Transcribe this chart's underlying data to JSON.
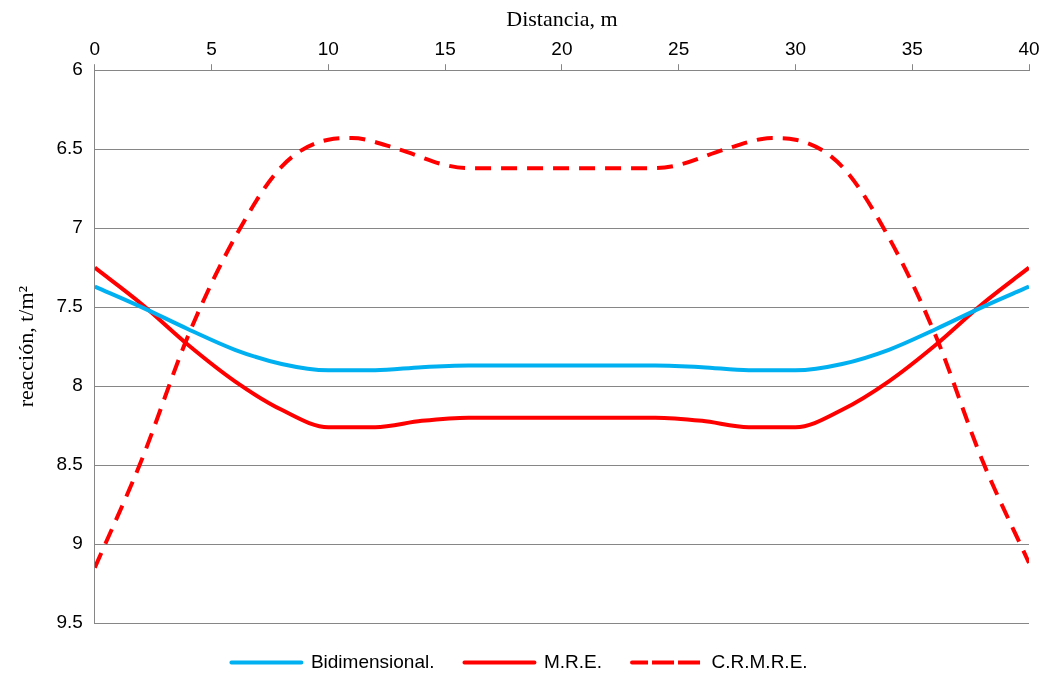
{
  "chart_data": {
    "type": "line",
    "xlabel": "Distancia, m",
    "ylabel": "reacción, t/m²",
    "xlim": [
      0,
      40
    ],
    "xticks": [
      0,
      5,
      10,
      15,
      20,
      25,
      30,
      35,
      40
    ],
    "ylim": [
      9.5,
      6
    ],
    "yticks": [
      6,
      6.5,
      7,
      7.5,
      8,
      8.5,
      9,
      9.5
    ],
    "grid": "y",
    "legend": "bottom",
    "marker": "none",
    "series": [
      {
        "name": "Bidimensional.",
        "color": "#00b0f0",
        "line_style": "solid",
        "x": [
          0,
          2,
          4,
          6,
          8,
          10,
          12,
          14,
          16,
          20,
          24,
          26,
          28,
          30,
          32,
          34,
          36,
          38,
          40
        ],
        "values": [
          7.37,
          7.5,
          7.64,
          7.77,
          7.86,
          7.9,
          7.9,
          7.88,
          7.87,
          7.87,
          7.87,
          7.88,
          7.9,
          7.9,
          7.86,
          7.77,
          7.64,
          7.5,
          7.37
        ]
      },
      {
        "name": "M.R.E.",
        "color": "#ff0000",
        "line_style": "solid",
        "x": [
          0,
          2,
          4,
          6,
          8,
          10,
          12,
          14,
          16,
          20,
          24,
          26,
          28,
          30,
          32,
          34,
          36,
          38,
          40
        ],
        "values": [
          7.25,
          7.48,
          7.74,
          7.97,
          8.15,
          8.26,
          8.26,
          8.22,
          8.2,
          8.2,
          8.2,
          8.22,
          8.26,
          8.26,
          8.15,
          7.97,
          7.74,
          7.48,
          7.25
        ]
      },
      {
        "name": "C.R.M.R.E.",
        "color": "#ff0000",
        "line_style": "dashed",
        "x": [
          0,
          2,
          4,
          6,
          8,
          10,
          11,
          13,
          15,
          16,
          20,
          24,
          25,
          27,
          29,
          30,
          32,
          34,
          36,
          38,
          40
        ],
        "values": [
          9.15,
          8.47,
          7.68,
          7.06,
          6.61,
          6.44,
          6.43,
          6.5,
          6.6,
          6.62,
          6.62,
          6.62,
          6.6,
          6.5,
          6.43,
          6.44,
          6.61,
          7.06,
          7.68,
          8.47,
          9.12
        ]
      }
    ]
  }
}
